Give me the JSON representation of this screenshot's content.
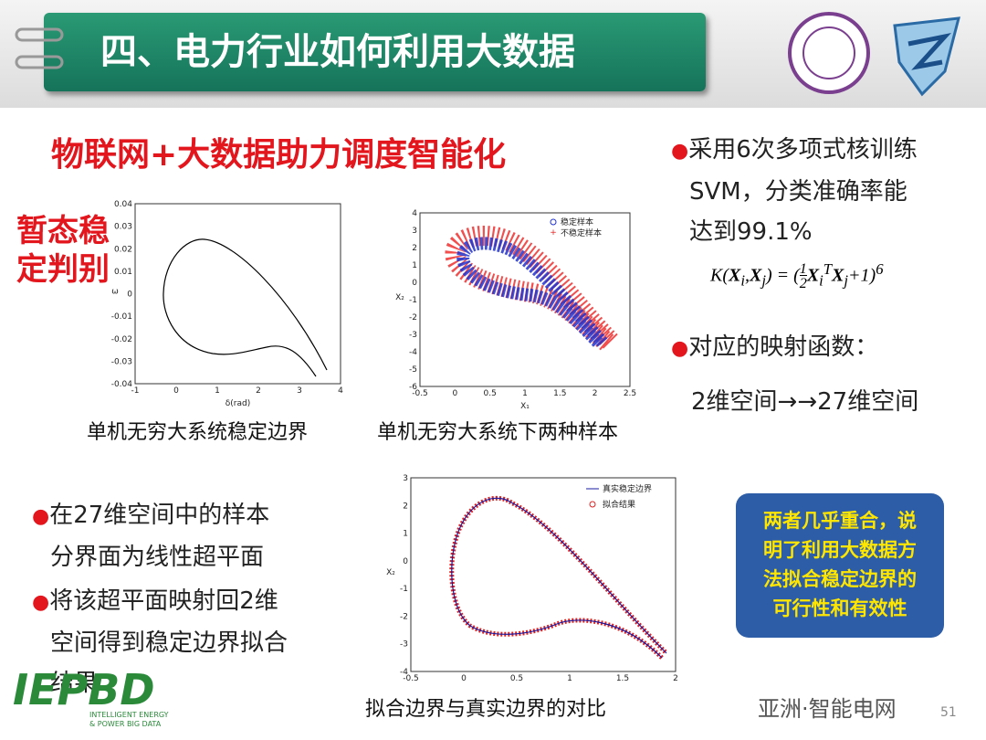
{
  "header": {
    "title": "四、电力行业如何利用大数据"
  },
  "subtitle": "物联网+大数据助力调度智能化",
  "side_label": [
    "暂态稳",
    "定判别"
  ],
  "figures": [
    {
      "caption": "单机无穷大系统稳定边界",
      "x_label": "δ(rad)",
      "y_label": "ω",
      "xticks": [
        "-1",
        "0",
        "1",
        "2",
        "3",
        "4"
      ],
      "yticks": [
        "0.04",
        "0.03",
        "0.02",
        "0.01",
        "0",
        "-0.01",
        "-0.02",
        "-0.03",
        "-0.04"
      ]
    },
    {
      "caption": "单机无穷大系统下两种样本",
      "x_label": "X₁",
      "y_label": "X₂",
      "legend": [
        "稳定样本",
        "不稳定样本"
      ],
      "xticks": [
        "-0.5",
        "0",
        "0.5",
        "1",
        "1.5",
        "2",
        "2.5"
      ],
      "yticks": [
        "4",
        "3",
        "2",
        "1",
        "0",
        "-1",
        "-2",
        "-3",
        "-4",
        "-5",
        "-6"
      ]
    },
    {
      "caption": "拟合边界与真实边界的对比",
      "y_label": "X₂",
      "legend": [
        "真实稳定边界",
        "拟合结果"
      ],
      "xticks": [
        "-0.5",
        "0",
        "0.5",
        "1",
        "1.5",
        "2"
      ],
      "yticks": [
        "3",
        "2",
        "1",
        "0",
        "-1",
        "-2",
        "-3",
        "-4"
      ]
    }
  ],
  "right_bullets": [
    {
      "lines": [
        "采用6次多项式核训练",
        "SVM，分类准确率能",
        "达到99.1%"
      ]
    },
    {
      "lines": [
        "对应的映射函数："
      ]
    }
  ],
  "formula": {
    "lhs": "K(",
    "x": "X",
    "i": "i",
    "comma": ",",
    "j": "j",
    "mid": ") = (",
    "num": "1",
    "den": "2",
    "t": "T",
    "end": "+1)",
    "pow": "6"
  },
  "mapping": "2维空间→→27维空间",
  "left_bullets": [
    {
      "lines": [
        "在27维空间中的样本",
        "分界面为线性超平面"
      ]
    },
    {
      "lines": [
        "将该超平面映射回2维",
        "空间得到稳定边界拟合",
        "结果"
      ]
    }
  ],
  "callout": [
    "两者几乎重合，说",
    "明了利用大数据方",
    "法拟合稳定边界的",
    "可行性和有效性"
  ],
  "footer": {
    "logo": "IEPBD",
    "logo_lines": [
      "INTELLIGENT ENERGY",
      "& POWER BIG DATA"
    ],
    "watermark": "亚洲·智能电网",
    "page": "51"
  }
}
